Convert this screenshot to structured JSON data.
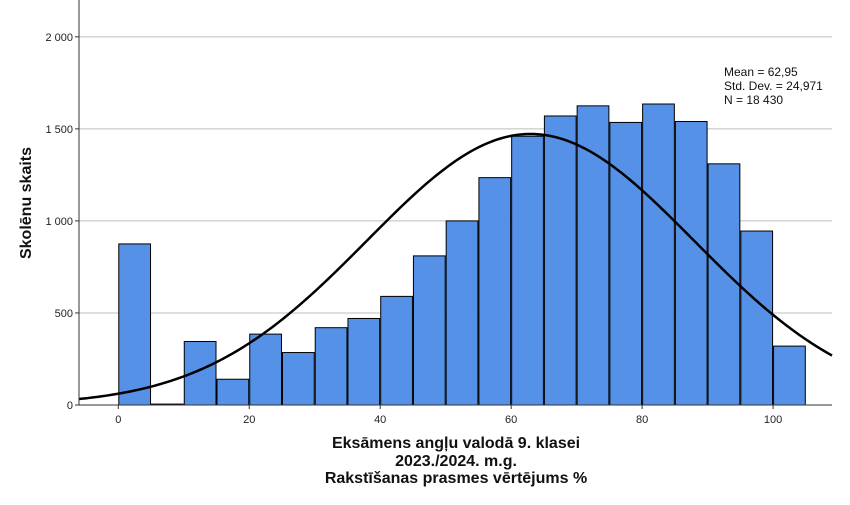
{
  "chart_data": {
    "type": "bar",
    "subtype": "histogram",
    "title": "",
    "xlabel_lines": [
      "Eksāmens angļu valodā 9. klasei",
      "2023./2024. m.g.",
      "Rakstīšanas prasmes vērtējums %"
    ],
    "ylabel": "Skolēnu skaits",
    "xlim": [
      -6,
      109
    ],
    "ylim": [
      0,
      2200
    ],
    "x_ticks": [
      0,
      20,
      40,
      60,
      80,
      100
    ],
    "y_ticks": [
      0,
      500,
      1000,
      1500,
      2000
    ],
    "y_tick_labels": [
      "0",
      "500",
      "1 000",
      "1 500",
      "2 000"
    ],
    "grid": "horizontal",
    "bar_color": "#5591E6",
    "bar_edge_color": "#000000",
    "bin_width": 5,
    "bins": [
      {
        "from": 0,
        "to": 5,
        "count": 875
      },
      {
        "from": 5,
        "to": 10,
        "count": 5
      },
      {
        "from": 10,
        "to": 15,
        "count": 345
      },
      {
        "from": 15,
        "to": 20,
        "count": 140
      },
      {
        "from": 20,
        "to": 25,
        "count": 385
      },
      {
        "from": 25,
        "to": 30,
        "count": 285
      },
      {
        "from": 30,
        "to": 35,
        "count": 420
      },
      {
        "from": 35,
        "to": 40,
        "count": 470
      },
      {
        "from": 40,
        "to": 45,
        "count": 590
      },
      {
        "from": 45,
        "to": 50,
        "count": 810
      },
      {
        "from": 50,
        "to": 55,
        "count": 1000
      },
      {
        "from": 55,
        "to": 60,
        "count": 1235
      },
      {
        "from": 60,
        "to": 65,
        "count": 1460
      },
      {
        "from": 65,
        "to": 70,
        "count": 1570
      },
      {
        "from": 70,
        "to": 75,
        "count": 1625
      },
      {
        "from": 75,
        "to": 80,
        "count": 1535
      },
      {
        "from": 80,
        "to": 85,
        "count": 1635
      },
      {
        "from": 85,
        "to": 90,
        "count": 1540
      },
      {
        "from": 90,
        "to": 95,
        "count": 1310
      },
      {
        "from": 95,
        "to": 100,
        "count": 945
      },
      {
        "from": 100,
        "to": 105,
        "count": 320
      }
    ],
    "normal_curve": {
      "mean": 62.95,
      "std_dev": 24.971,
      "n": 18430,
      "color": "#000000"
    },
    "stats_box_lines": [
      "Mean = 62,95",
      "Std. Dev. = 24,971",
      "N = 18 430"
    ]
  }
}
